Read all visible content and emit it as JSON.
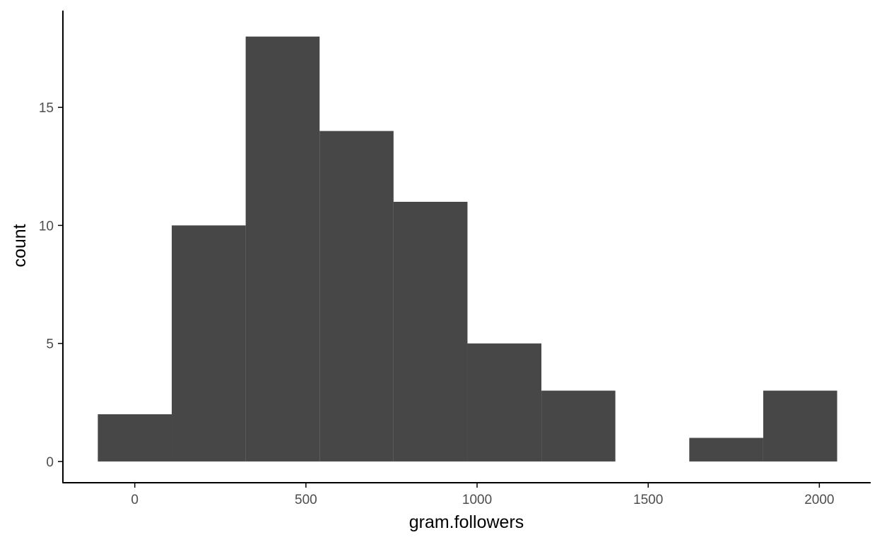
{
  "chart_data": {
    "type": "bar",
    "subtype": "histogram",
    "title": "",
    "xlabel": "gram.followers",
    "ylabel": "count",
    "bins": [
      {
        "x0": -108,
        "x1": 108,
        "count": 2
      },
      {
        "x0": 108,
        "x1": 324,
        "count": 10
      },
      {
        "x0": 324,
        "x1": 540,
        "count": 18
      },
      {
        "x0": 540,
        "x1": 756,
        "count": 14
      },
      {
        "x0": 756,
        "x1": 972,
        "count": 11
      },
      {
        "x0": 972,
        "x1": 1188,
        "count": 5
      },
      {
        "x0": 1188,
        "x1": 1404,
        "count": 3
      },
      {
        "x0": 1404,
        "x1": 1620,
        "count": 0
      },
      {
        "x0": 1620,
        "x1": 1836,
        "count": 1
      },
      {
        "x0": 1836,
        "x1": 2052,
        "count": 3
      }
    ],
    "xlim": [
      -210,
      2150
    ],
    "ylim": [
      -0.9,
      19.1
    ],
    "xticks": [
      0,
      500,
      1000,
      1500,
      2000
    ],
    "xtick_labels": [
      "0",
      "500",
      "1000",
      "1500",
      "2000"
    ],
    "yticks": [
      0,
      5,
      10,
      15
    ],
    "ytick_labels": [
      "0",
      "5",
      "10",
      "15"
    ],
    "grid": false,
    "legend": "none",
    "bar_color": "#474747",
    "axis_color": "#000000",
    "tick_label_color": "#4d4d4d",
    "background": "#ffffff"
  }
}
